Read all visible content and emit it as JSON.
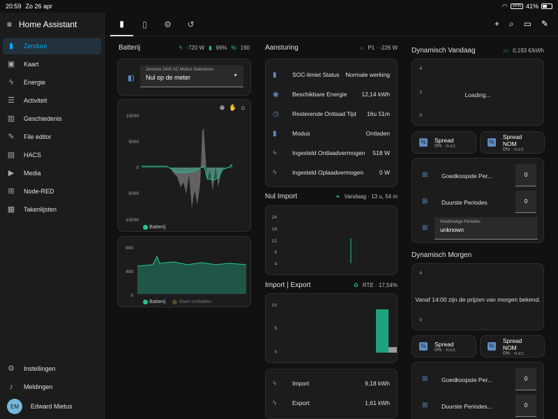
{
  "status_bar": {
    "time": "20:59",
    "date": "Zo 26 apr",
    "vpn": "VPN",
    "battery": "41%"
  },
  "sidebar": {
    "title": "Home Assistant",
    "items": [
      {
        "label": "Zendure",
        "icon": "battery-icon"
      },
      {
        "label": "Kaart",
        "icon": "map-icon"
      },
      {
        "label": "Energie",
        "icon": "lightning-icon"
      },
      {
        "label": "Activiteit",
        "icon": "list-icon"
      },
      {
        "label": "Geschiedenis",
        "icon": "chart-icon"
      },
      {
        "label": "File editor",
        "icon": "wrench-icon"
      },
      {
        "label": "HACS",
        "icon": "store-icon"
      },
      {
        "label": "Media",
        "icon": "media-icon"
      },
      {
        "label": "Node-RED",
        "icon": "network-icon"
      },
      {
        "label": "Takenlijsten",
        "icon": "clipboard-icon"
      }
    ],
    "bottom": [
      {
        "label": "Instellingen",
        "icon": "gear-icon"
      },
      {
        "label": "Meldingen",
        "icon": "bell-icon"
      }
    ],
    "user": {
      "initials": "EM",
      "name": "Edward Mietus"
    }
  },
  "batterij": {
    "title": "Batterij",
    "power": "-720 W",
    "soc": "96%",
    "value": "190",
    "select_label": "Zendure 2400 AC Modus Selecteren",
    "select_value": "Nul op de meter",
    "legend_1": "Batterij",
    "legend_2": "Batterij",
    "legend_3": "Start ontladen"
  },
  "aansturing": {
    "title": "Aansturing",
    "meta": "P1 · -226 W",
    "rows": [
      {
        "label": "SOC-limiet Status",
        "value": "Normale werking"
      },
      {
        "label": "Beschikbare Energie",
        "value": "12,14 kWh"
      },
      {
        "label": "Resterende Ontlaad Tijd",
        "value": "16u 51m"
      },
      {
        "label": "Modus",
        "value": "Ontladen"
      },
      {
        "label": "Ingesteld Ontlaadvermogen",
        "value": "518 W"
      },
      {
        "label": "Ingesteld Oplaadvermogen",
        "value": "0 W"
      }
    ]
  },
  "nul_import": {
    "title": "Nul Import",
    "meta": "Vandaag · 13 u, 54 m"
  },
  "import_export": {
    "title": "Import | Export",
    "meta": "RTE · 17,54%",
    "rows": [
      {
        "label": "Import",
        "value": "9,18 kWh"
      },
      {
        "label": "Export",
        "value": "1,61 kWh"
      }
    ]
  },
  "dyn_vandaag": {
    "title": "Dynamisch Vandaag",
    "meta": "0,193 €/kWh",
    "loading": "Loading...",
    "spread": {
      "title": "Spread",
      "sub": "0% · n.v.t."
    },
    "spread_nom": {
      "title": "Spread NOM",
      "sub": "0% · n.v.t."
    },
    "goedkoopste": "Goedkoopste Per...",
    "goedkoopste_val": "0",
    "duurste": "Duurste Periodes",
    "duurste_val": "0",
    "handmatig_label": "Handmatige Periodes",
    "handmatig_value": "unknown"
  },
  "dyn_morgen": {
    "title": "Dynamisch Morgen",
    "message": "Vanaf 14:00 zijn de prijzen van morgen bekend.",
    "spread": {
      "title": "Spread",
      "sub": "0% · n.v.t."
    },
    "spread_nom": {
      "title": "Spread NOM",
      "sub": "0% · n.v.t."
    },
    "goedkoopste": "Goedkoopste Per...",
    "goedkoopste_val": "0",
    "duurste": "Duurste Periodes...",
    "duurste_val": "0"
  },
  "chart_data": [
    {
      "type": "area",
      "title": "",
      "ylim": [
        -10000,
        10000
      ],
      "yticks": [
        "10000",
        "5000",
        "0",
        "-5000",
        "-10000"
      ],
      "series": [
        {
          "name": "Batterij"
        }
      ]
    },
    {
      "type": "area",
      "title": "",
      "ylim": [
        0,
        800
      ],
      "yticks": [
        "800",
        "400",
        "0"
      ],
      "series": [
        {
          "name": "Batterij"
        },
        {
          "name": "Start ontladen"
        }
      ]
    },
    {
      "type": "bar",
      "title": "",
      "ylim": [
        0,
        24
      ],
      "yticks": [
        "24",
        "16",
        "12",
        "8",
        "4",
        "0"
      ]
    },
    {
      "type": "bar",
      "title": "",
      "ylim": [
        0,
        10
      ],
      "yticks": [
        "10",
        "5",
        "0"
      ]
    },
    {
      "type": "line",
      "title": "",
      "ylim": [
        0,
        4
      ],
      "yticks": [
        "4",
        "2",
        "0"
      ]
    },
    {
      "type": "line",
      "title": "",
      "ylim": [
        0,
        4
      ],
      "yticks": [
        "4",
        "0"
      ]
    }
  ],
  "colors": {
    "accent": "#03a9f4",
    "green": "#25c39b",
    "card": "#1c1c1c"
  }
}
